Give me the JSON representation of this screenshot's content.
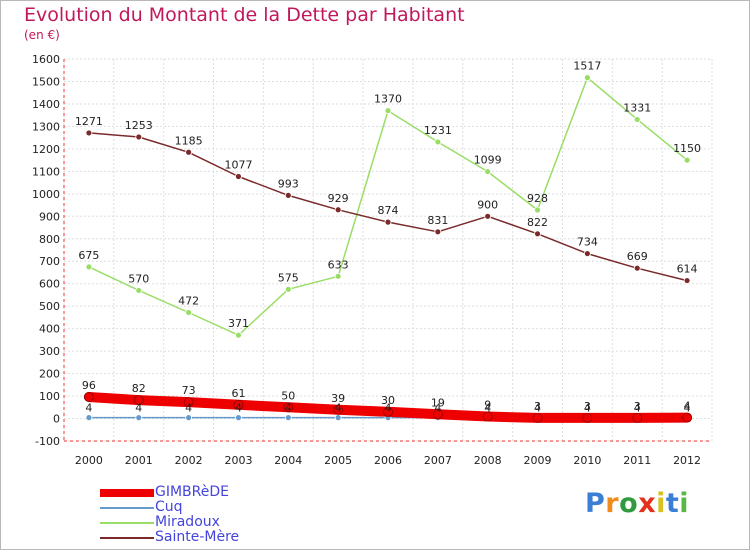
{
  "chart_data": {
    "type": "line",
    "title": "Evolution du Montant de la Dette par Habitant",
    "ylabel": "(en €)",
    "xlabel": "",
    "x": [
      "2000",
      "2001",
      "2002",
      "2003",
      "2004",
      "2005",
      "2006",
      "2007",
      "2008",
      "2009",
      "2010",
      "2011",
      "2012"
    ],
    "ylim": [
      -100,
      1600
    ],
    "yticks": [
      -100,
      0,
      100,
      200,
      300,
      400,
      500,
      600,
      700,
      800,
      900,
      1000,
      1100,
      1200,
      1300,
      1400,
      1500,
      1600
    ],
    "grid": true,
    "legend_position": "bottom-left",
    "series": [
      {
        "name": "GIMBRèDE",
        "color": "#ee0000",
        "values": [
          96,
          82,
          73,
          61,
          50,
          39,
          30,
          19,
          9,
          3,
          3,
          3,
          4
        ]
      },
      {
        "name": "Cuq",
        "color": "#6699cc",
        "values": [
          4,
          4,
          4,
          4,
          4,
          4,
          4,
          4,
          4,
          4,
          4,
          4,
          4
        ]
      },
      {
        "name": "Miradoux",
        "color": "#99dd66",
        "values": [
          675,
          570,
          472,
          371,
          575,
          633,
          1370,
          1231,
          1099,
          928,
          1517,
          1331,
          1150
        ]
      },
      {
        "name": "Sainte-Mère",
        "color": "#7a2a2a",
        "values": [
          1271,
          1253,
          1185,
          1077,
          993,
          929,
          874,
          831,
          900,
          822,
          734,
          669,
          614
        ]
      }
    ]
  },
  "brand": {
    "letters": [
      "P",
      "r",
      "o",
      "x",
      "i",
      "t",
      "i"
    ],
    "colors": [
      "#3a7fd5",
      "#f08c1a",
      "#2f9a3e",
      "#e4301c",
      "#d7c21f",
      "#3a7fd5",
      "#59b845"
    ]
  }
}
